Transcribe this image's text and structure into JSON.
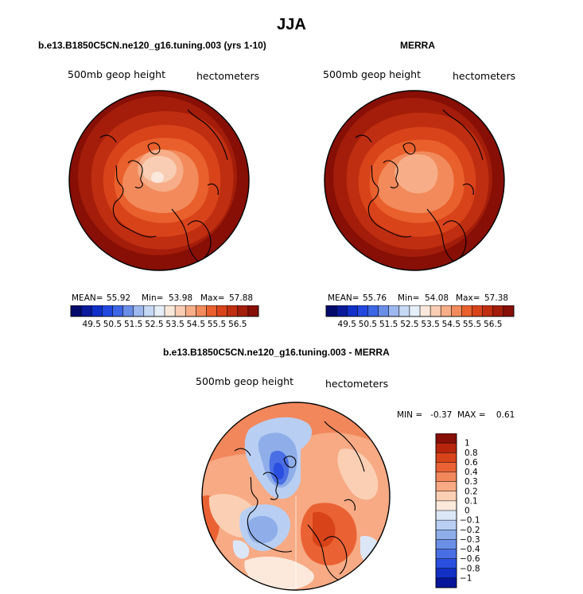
{
  "page_title": "JJA",
  "chart_data": [
    {
      "type": "heatmap",
      "title": "b.e13.B1850C5CN.ne120_g16.tuning.003 (yrs 1-10)",
      "left_label": "500mb geop height",
      "right_label": "hectometers",
      "stats": {
        "mean_label": "MEAN=",
        "mean": "55.92",
        "min_label": "Min=",
        "min": "53.98",
        "max_label": "Max=",
        "max": "57.88"
      },
      "colorbar_ticks": [
        "49.5",
        "50.5",
        "51.5",
        "52.5",
        "53.5",
        "54.5",
        "55.5",
        "56.5"
      ],
      "colorbar_colors": [
        "#020a6a",
        "#0a1a9a",
        "#1030c8",
        "#2248e0",
        "#3c66e6",
        "#6a8ee8",
        "#9db8ee",
        "#c6d8f4",
        "#e6eef8",
        "#fbe8dc",
        "#f8cdb3",
        "#f7ae88",
        "#f28a5c",
        "#e9602c",
        "#d8431a",
        "#bf2e10",
        "#a31d0a",
        "#870f05"
      ]
    },
    {
      "type": "heatmap",
      "title": "MERRA",
      "left_label": "500mb geop height",
      "right_label": "hectometers",
      "stats": {
        "mean_label": "MEAN=",
        "mean": "55.76",
        "min_label": "Min=",
        "min": "54.08",
        "max_label": "Max=",
        "max": "57.38"
      },
      "colorbar_ticks": [
        "49.5",
        "50.5",
        "51.5",
        "52.5",
        "53.5",
        "54.5",
        "55.5",
        "56.5"
      ],
      "colorbar_colors": [
        "#020a6a",
        "#0a1a9a",
        "#1030c8",
        "#2248e0",
        "#3c66e6",
        "#6a8ee8",
        "#9db8ee",
        "#c6d8f4",
        "#e6eef8",
        "#fbe8dc",
        "#f8cdb3",
        "#f7ae88",
        "#f28a5c",
        "#e9602c",
        "#d8431a",
        "#bf2e10",
        "#a31d0a",
        "#870f05"
      ]
    },
    {
      "type": "heatmap",
      "title": "b.e13.B1850C5CN.ne120_g16.tuning.003 - MERRA",
      "left_label": "500mb geop height",
      "right_label": "hectometers",
      "stats_text": "MIN =   -0.37  MAX =    0.61",
      "colorbar_ticks": [
        "1",
        "0.8",
        "0.6",
        "0.4",
        "0.3",
        "0.2",
        "0.1",
        "0",
        "-0.1",
        "-0.2",
        "-0.3",
        "-0.4",
        "-0.6",
        "-0.8",
        "-1"
      ],
      "colorbar_colors": [
        "#870f05",
        "#b8250d",
        "#d8431a",
        "#ea6234",
        "#f2875c",
        "#f7aa84",
        "#fbcfb4",
        "#fde9dc",
        "#dbe7f7",
        "#b8cff3",
        "#8faee9",
        "#6a8fe6",
        "#4a6ee4",
        "#2a4fe0",
        "#1230c4",
        "#06159a"
      ]
    }
  ]
}
